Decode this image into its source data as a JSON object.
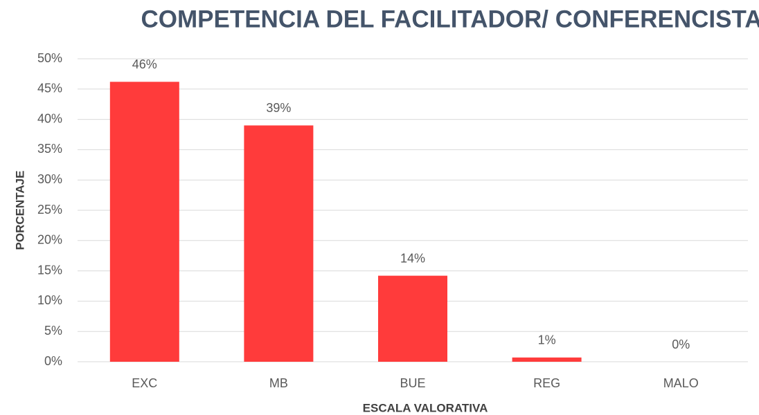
{
  "chart_data": {
    "type": "bar",
    "title": "COMPETENCIA DEL FACILITADOR/ CONFERENCISTA",
    "x_label": "ESCALA VALORATIVA",
    "y_label": "PORCENTAJE",
    "categories": [
      "EXC",
      "MB",
      "BUE",
      "REG",
      "MALO"
    ],
    "values": [
      46.2,
      39.0,
      14.2,
      0.7,
      0
    ],
    "value_labels": [
      "46%",
      "39%",
      "14%",
      "1%",
      "0%"
    ],
    "color": "#ff3b3b",
    "ylim": [
      0,
      50
    ],
    "yticks": [
      {
        "value": 0,
        "label": "0%"
      },
      {
        "value": 5,
        "label": "5%"
      },
      {
        "value": 10,
        "label": "10%"
      },
      {
        "value": 15,
        "label": "15%"
      },
      {
        "value": 20,
        "label": "20%"
      },
      {
        "value": 25,
        "label": "25%"
      },
      {
        "value": 30,
        "label": "30%"
      },
      {
        "value": 35,
        "label": "35%"
      },
      {
        "value": 40,
        "label": "40%"
      },
      {
        "value": 45,
        "label": "45%"
      },
      {
        "value": 50,
        "label": "50%"
      }
    ],
    "grid": true
  }
}
